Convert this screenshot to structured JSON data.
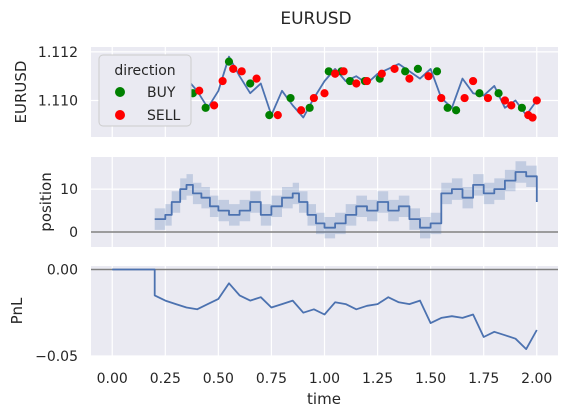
{
  "chart_data": {
    "type": "line",
    "title": "EURUSD",
    "xlabel": "time",
    "xlim": [
      -0.1,
      2.1
    ],
    "xticks": [
      0.0,
      0.25,
      0.5,
      0.75,
      1.0,
      1.25,
      1.5,
      1.75,
      2.0
    ],
    "xtick_labels": [
      "0.00",
      "0.25",
      "0.50",
      "0.75",
      "1.00",
      "1.25",
      "1.50",
      "1.75",
      "2.00"
    ],
    "grid": true,
    "panels": [
      {
        "ylabel": "EURUSD",
        "ylim": [
          1.1085,
          1.1122
        ],
        "yticks": [
          1.11,
          1.112
        ],
        "ytick_labels": [
          "1.110",
          "1.112"
        ],
        "series": [
          {
            "name": "EURUSD",
            "color": "#4c72b0",
            "x": [
              0.2,
              0.25,
              0.3,
              0.35,
              0.4,
              0.45,
              0.5,
              0.55,
              0.6,
              0.65,
              0.7,
              0.75,
              0.8,
              0.85,
              0.9,
              0.95,
              1.0,
              1.05,
              1.1,
              1.15,
              1.2,
              1.25,
              1.3,
              1.35,
              1.4,
              1.45,
              1.5,
              1.55,
              1.6,
              1.65,
              1.7,
              1.75,
              1.8,
              1.85,
              1.9,
              1.95,
              2.0
            ],
            "y": [
              1.11,
              1.1096,
              1.1105,
              1.1109,
              1.1104,
              1.1097,
              1.1104,
              1.1118,
              1.111,
              1.1103,
              1.1107,
              1.1094,
              1.1104,
              1.1098,
              1.1093,
              1.1101,
              1.1108,
              1.1113,
              1.1108,
              1.111,
              1.1107,
              1.1111,
              1.1113,
              1.1115,
              1.1112,
              1.1109,
              1.1113,
              1.1101,
              1.1097,
              1.1109,
              1.1103,
              1.1102,
              1.1106,
              1.1097,
              1.11,
              1.1094,
              1.11
            ]
          }
        ],
        "markers": {
          "legend_title": "direction",
          "categories": [
            {
              "name": "BUY",
              "color": "#008000",
              "x": [
                0.2,
                0.38,
                0.44,
                0.55,
                0.65,
                0.74,
                0.84,
                0.93,
                1.02,
                1.08,
                1.12,
                1.19,
                1.26,
                1.38,
                1.44,
                1.53,
                1.58,
                1.62,
                1.73,
                1.82,
                1.93
              ],
              "y": [
                1.1099,
                1.1103,
                1.1097,
                1.1116,
                1.1107,
                1.1094,
                1.1101,
                1.1097,
                1.1112,
                1.1112,
                1.1108,
                1.1108,
                1.1109,
                1.1112,
                1.1113,
                1.1112,
                1.1097,
                1.1096,
                1.1103,
                1.1103,
                1.1097
              ]
            },
            {
              "name": "SELL",
              "color": "#ff0000",
              "x": [
                0.22,
                0.27,
                0.31,
                0.41,
                0.48,
                0.52,
                0.57,
                0.61,
                0.68,
                0.78,
                0.89,
                0.95,
                1.0,
                1.05,
                1.09,
                1.15,
                1.2,
                1.27,
                1.33,
                1.4,
                1.49,
                1.55,
                1.66,
                1.7,
                1.77,
                1.85,
                1.88,
                1.96,
                1.98,
                2.0
              ],
              "y": [
                1.1099,
                1.1097,
                1.1102,
                1.1104,
                1.1098,
                1.1108,
                1.1113,
                1.1112,
                1.1109,
                1.1094,
                1.1096,
                1.1101,
                1.1103,
                1.1111,
                1.1112,
                1.1107,
                1.1108,
                1.1111,
                1.1113,
                1.1109,
                1.111,
                1.1101,
                1.1101,
                1.1108,
                1.1101,
                1.11,
                1.1098,
                1.1094,
                1.1093,
                1.11
              ]
            }
          ]
        }
      },
      {
        "ylabel": "position",
        "ylim": [
          -3.5,
          17.5
        ],
        "yticks": [
          0,
          10
        ],
        "ytick_labels": [
          "0",
          "10"
        ],
        "hline": 0,
        "band_halfwidth": 2.5,
        "series": [
          {
            "name": "position",
            "color": "#4c72b0",
            "drawstyle": "steps-post",
            "x": [
              0.2,
              0.25,
              0.28,
              0.32,
              0.35,
              0.38,
              0.42,
              0.46,
              0.5,
              0.55,
              0.6,
              0.65,
              0.7,
              0.75,
              0.8,
              0.85,
              0.88,
              0.92,
              0.96,
              1.0,
              1.05,
              1.1,
              1.15,
              1.2,
              1.25,
              1.3,
              1.35,
              1.4,
              1.45,
              1.5,
              1.55,
              1.6,
              1.65,
              1.7,
              1.75,
              1.8,
              1.85,
              1.9,
              1.95,
              2.0
            ],
            "y": [
              3,
              4,
              7,
              10,
              11,
              9,
              8,
              6,
              5,
              4,
              5,
              7,
              4,
              6,
              8,
              9,
              7,
              4,
              2,
              1,
              2,
              4,
              6,
              5,
              7,
              5,
              6,
              3,
              1,
              2,
              9,
              10,
              8,
              11,
              9,
              10,
              12,
              14,
              13,
              7
            ]
          }
        ]
      },
      {
        "ylabel": "PnL",
        "ylim": [
          -0.05,
          0.002
        ],
        "yticks": [
          0.0,
          -0.05
        ],
        "ytick_labels": [
          "0.00",
          "−0.05"
        ],
        "hline": 0,
        "series": [
          {
            "name": "PnL",
            "color": "#4c72b0",
            "x": [
              0.0,
              0.2,
              0.2,
              0.25,
              0.3,
              0.35,
              0.4,
              0.45,
              0.5,
              0.55,
              0.6,
              0.65,
              0.7,
              0.75,
              0.8,
              0.85,
              0.9,
              0.95,
              1.0,
              1.05,
              1.1,
              1.15,
              1.2,
              1.25,
              1.3,
              1.35,
              1.4,
              1.45,
              1.5,
              1.55,
              1.6,
              1.65,
              1.7,
              1.75,
              1.8,
              1.85,
              1.9,
              1.95,
              2.0
            ],
            "y": [
              0.0,
              0.0,
              -0.015,
              -0.018,
              -0.02,
              -0.022,
              -0.023,
              -0.02,
              -0.017,
              -0.008,
              -0.015,
              -0.018,
              -0.016,
              -0.022,
              -0.02,
              -0.018,
              -0.025,
              -0.023,
              -0.026,
              -0.019,
              -0.02,
              -0.023,
              -0.021,
              -0.02,
              -0.016,
              -0.019,
              -0.02,
              -0.018,
              -0.031,
              -0.028,
              -0.027,
              -0.028,
              -0.026,
              -0.039,
              -0.036,
              -0.038,
              -0.04,
              -0.046,
              -0.035
            ]
          }
        ]
      }
    ]
  }
}
